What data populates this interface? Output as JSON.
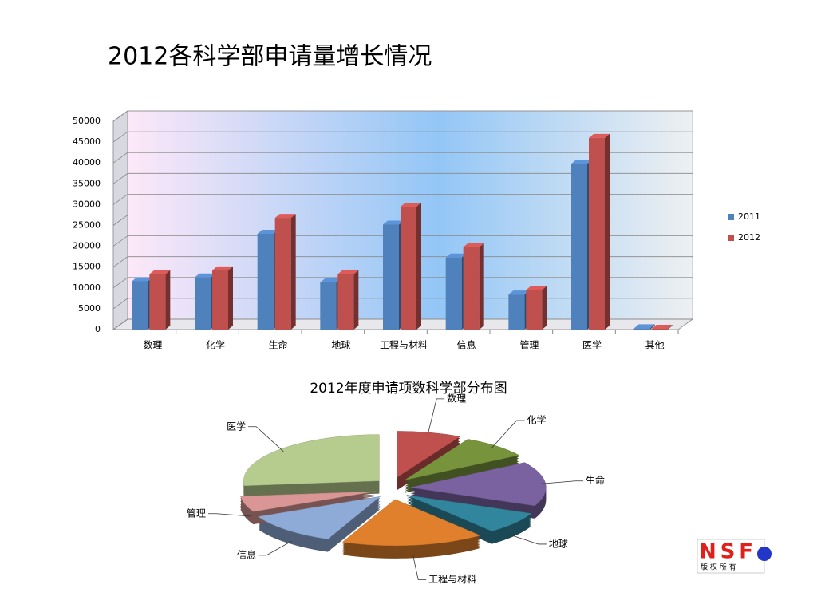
{
  "title": "2012各科学部申请量增长情况",
  "chart_data": [
    {
      "type": "bar",
      "categories": [
        "数理",
        "化学",
        "生命",
        "地球",
        "工程与材料",
        "信息",
        "管理",
        "医学",
        "其他"
      ],
      "series": [
        {
          "name": "2011",
          "color": "#4f81bd",
          "values": [
            11600,
            12500,
            23000,
            11300,
            25200,
            17300,
            8400,
            39800,
            300
          ]
        },
        {
          "name": "2012",
          "color": "#c0504d",
          "values": [
            13300,
            14200,
            26800,
            13300,
            29500,
            19800,
            9500,
            46000,
            200
          ]
        }
      ],
      "ylim": [
        0,
        50000
      ],
      "yticks": [
        0,
        5000,
        10000,
        15000,
        20000,
        25000,
        30000,
        35000,
        40000,
        45000,
        50000
      ],
      "grid": true,
      "legend": "right"
    },
    {
      "type": "pie",
      "title": "2012年度申请项数科学部分布图",
      "categories": [
        "数理",
        "化学",
        "生命",
        "地球",
        "工程与材料",
        "信息",
        "管理",
        "医学"
      ],
      "values": [
        13300,
        14200,
        26800,
        13300,
        29500,
        19800,
        9500,
        46000
      ],
      "colors": [
        "#c0504d",
        "#77933c",
        "#7a62a0",
        "#31859c",
        "#e07f2c",
        "#8eaad6",
        "#d99694",
        "#b5cc8e"
      ]
    }
  ],
  "logo": {
    "text": "NSF",
    "caption": "版 权 所 有"
  }
}
